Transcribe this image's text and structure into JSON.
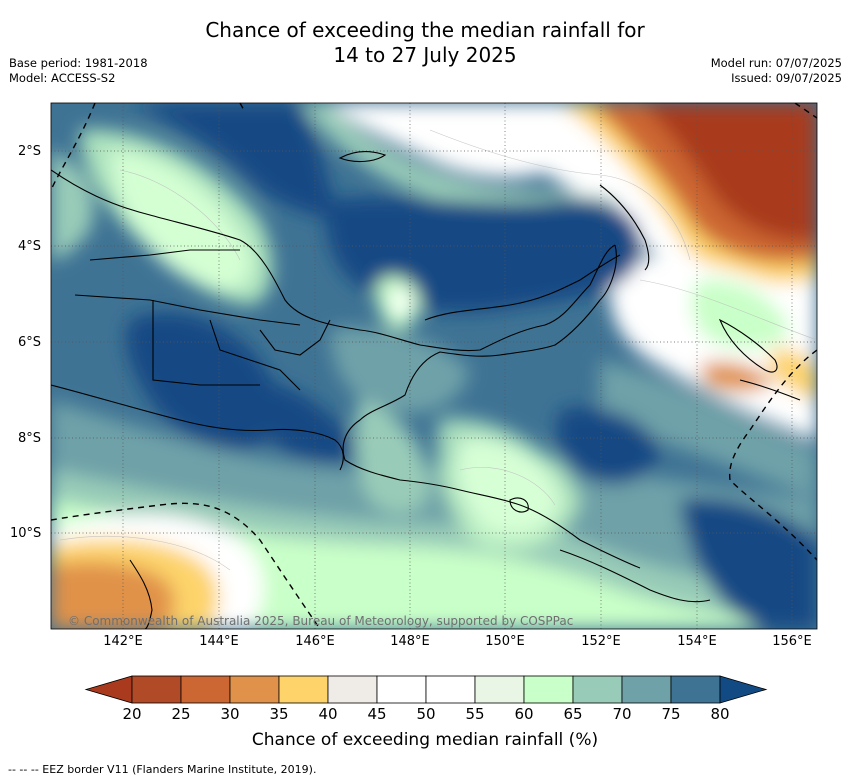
{
  "title": {
    "line1": "Chance of exceeding the median rainfall for",
    "line2": "14 to 27 July 2025"
  },
  "meta": {
    "base_period": "Base period: 1981-2018",
    "model": "Model: ACCESS-S2",
    "model_run": "Model run: 07/07/2025",
    "issued": "Issued: 09/07/2025"
  },
  "map": {
    "lat_labels": [
      "2°S",
      "4°S",
      "6°S",
      "8°S",
      "10°S"
    ],
    "lon_labels": [
      "142°E",
      "144°E",
      "146°E",
      "148°E",
      "150°E",
      "152°E",
      "154°E",
      "156°E"
    ],
    "copyright": "© Commonwealth of Australia 2025, Bureau of Meteorology, supported by COSPPac",
    "grid": true
  },
  "colorbar": {
    "ticks": [
      "20",
      "25",
      "30",
      "35",
      "40",
      "45",
      "50",
      "55",
      "60",
      "65",
      "70",
      "75",
      "80"
    ],
    "colors": [
      "#a93a1e",
      "#b14a27",
      "#cc6632",
      "#e0924a",
      "#fdd36a",
      "#efebe7",
      "#ffffff",
      "#ffffff",
      "#e9f5e5",
      "#c9ffc8",
      "#99ccb8",
      "#6ea1a8",
      "#3f7394",
      "#124a84"
    ],
    "label": "Chance of exceeding median rainfall (%)"
  },
  "footer": "--  --  -- EEZ border V11 (Flanders Marine Institute, 2019)."
}
